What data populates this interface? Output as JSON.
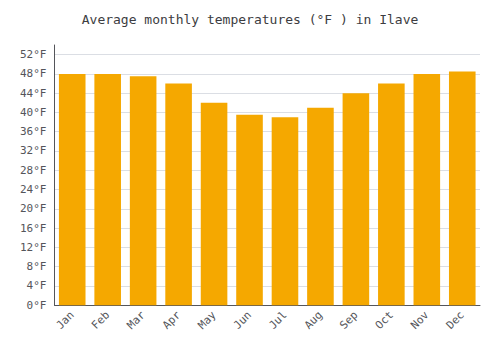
{
  "chart_data": {
    "type": "bar",
    "title": "Average monthly temperatures (°F ) in Ilave",
    "categories": [
      "Jan",
      "Feb",
      "Mar",
      "Apr",
      "May",
      "Jun",
      "Jul",
      "Aug",
      "Sep",
      "Oct",
      "Nov",
      "Dec"
    ],
    "values": [
      48.0,
      48.0,
      47.5,
      46.0,
      42.0,
      39.5,
      39.0,
      41.0,
      44.0,
      46.0,
      48.0,
      48.5
    ],
    "color": "#F5A800",
    "ylim": [
      0,
      54
    ],
    "yticks": [
      {
        "value": 0,
        "label": "0°F"
      },
      {
        "value": 4,
        "label": "4°F"
      },
      {
        "value": 8,
        "label": "8°F"
      },
      {
        "value": 12,
        "label": "12°F"
      },
      {
        "value": 16,
        "label": "16°F"
      },
      {
        "value": 20,
        "label": "20°F"
      },
      {
        "value": 24,
        "label": "24°F"
      },
      {
        "value": 28,
        "label": "28°F"
      },
      {
        "value": 32,
        "label": "32°F"
      },
      {
        "value": 36,
        "label": "36°F"
      },
      {
        "value": 40,
        "label": "40°F"
      },
      {
        "value": 44,
        "label": "44°F"
      },
      {
        "value": 48,
        "label": "48°F"
      },
      {
        "value": 52,
        "label": "52°F"
      }
    ],
    "grid": true
  }
}
